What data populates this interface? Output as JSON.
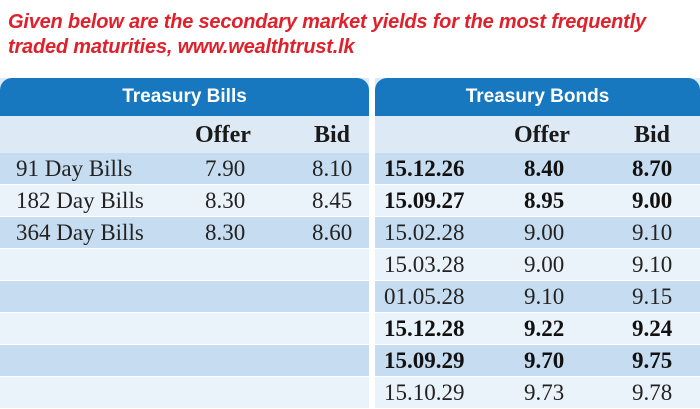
{
  "caption": "Given below are the secondary market yields for the most frequently traded maturities, www.wealthtrust.lk",
  "bills": {
    "title": "Treasury Bills",
    "headers": {
      "offer": "Offer",
      "bid": "Bid"
    },
    "rows": [
      {
        "name": "91 Day Bills",
        "offer": "7.90",
        "bid": "8.10"
      },
      {
        "name": "182 Day Bills",
        "offer": "8.30",
        "bid": "8.45"
      },
      {
        "name": "364 Day Bills",
        "offer": "8.30",
        "bid": "8.60"
      }
    ]
  },
  "bonds": {
    "title": "Treasury Bonds",
    "headers": {
      "offer": "Offer",
      "bid": "Bid"
    },
    "rows": [
      {
        "maturity": "15.12.26",
        "offer": "8.40",
        "bid": "8.70",
        "bold": true
      },
      {
        "maturity": "15.09.27",
        "offer": "8.95",
        "bid": "9.00",
        "bold": true
      },
      {
        "maturity": "15.02.28",
        "offer": "9.00",
        "bid": "9.10",
        "bold": false
      },
      {
        "maturity": "15.03.28",
        "offer": "9.00",
        "bid": "9.10",
        "bold": false
      },
      {
        "maturity": "01.05.28",
        "offer": "9.10",
        "bid": "9.15",
        "bold": false
      },
      {
        "maturity": "15.12.28",
        "offer": "9.22",
        "bid": "9.24",
        "bold": true
      },
      {
        "maturity": "15.09.29",
        "offer": "9.70",
        "bid": "9.75",
        "bold": true
      },
      {
        "maturity": "15.10.29",
        "offer": "9.73",
        "bid": "9.78",
        "bold": false
      }
    ]
  }
}
